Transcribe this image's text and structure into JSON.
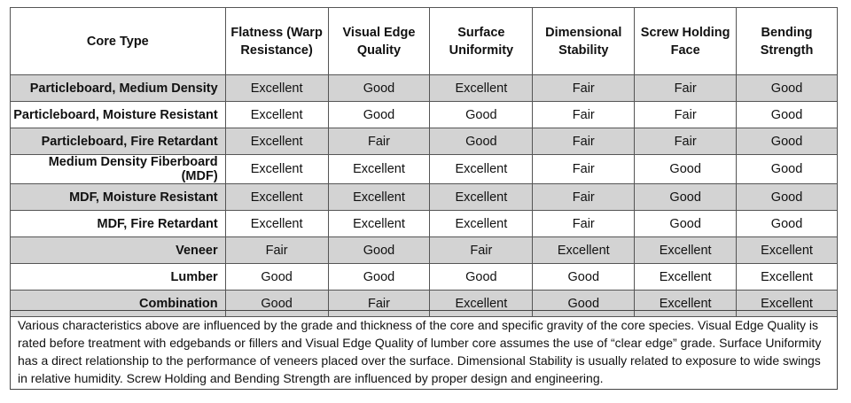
{
  "headers": [
    "Core Type",
    "Flatness (Warp Resistance)",
    "Visual Edge Quality",
    "Surface Uniformity",
    "Dimensional Stability",
    "Screw Holding Face",
    "Bending Strength"
  ],
  "rows": [
    {
      "label": "Particleboard, Medium Density",
      "cells": [
        "Excellent",
        "Good",
        "Excellent",
        "Fair",
        "Fair",
        "Good"
      ]
    },
    {
      "label": "Particleboard, Moisture Resistant",
      "cells": [
        "Excellent",
        "Good",
        "Good",
        "Fair",
        "Fair",
        "Good"
      ]
    },
    {
      "label": "Particleboard, Fire Retardant",
      "cells": [
        "Excellent",
        "Fair",
        "Good",
        "Fair",
        "Fair",
        "Good"
      ]
    },
    {
      "label": "Medium Density Fiberboard (MDF)",
      "cells": [
        "Excellent",
        "Excellent",
        "Excellent",
        "Fair",
        "Good",
        "Good"
      ]
    },
    {
      "label": "MDF, Moisture Resistant",
      "cells": [
        "Excellent",
        "Excellent",
        "Excellent",
        "Fair",
        "Good",
        "Good"
      ]
    },
    {
      "label": "MDF, Fire Retardant",
      "cells": [
        "Excellent",
        "Excellent",
        "Excellent",
        "Fair",
        "Good",
        "Good"
      ]
    },
    {
      "label": "Veneer",
      "cells": [
        "Fair",
        "Good",
        "Fair",
        "Excellent",
        "Excellent",
        "Excellent"
      ]
    },
    {
      "label": "Lumber",
      "cells": [
        "Good",
        "Good",
        "Good",
        "Good",
        "Excellent",
        "Excellent"
      ]
    },
    {
      "label": "Combination",
      "cells": [
        "Good",
        "Fair",
        "Excellent",
        "Good",
        "Excellent",
        "Excellent"
      ]
    }
  ],
  "note": "Various characteristics above are influenced by the grade and thickness of the core and specific gravity of the core species. Visual Edge Quality is rated before treatment with edgebands or fillers and Visual Edge Quality of lumber core assumes the use of “clear edge” grade. Surface Uniformity has a direct relationship to the performance of veneers placed over the surface. Dimensional Stability is usually related to exposure to wide swings in relative humidity. Screw Holding and Bending Strength are influenced by proper design and engineering.",
  "colors": {
    "shaded_row": "#d3d3d3",
    "border": "#555555"
  }
}
